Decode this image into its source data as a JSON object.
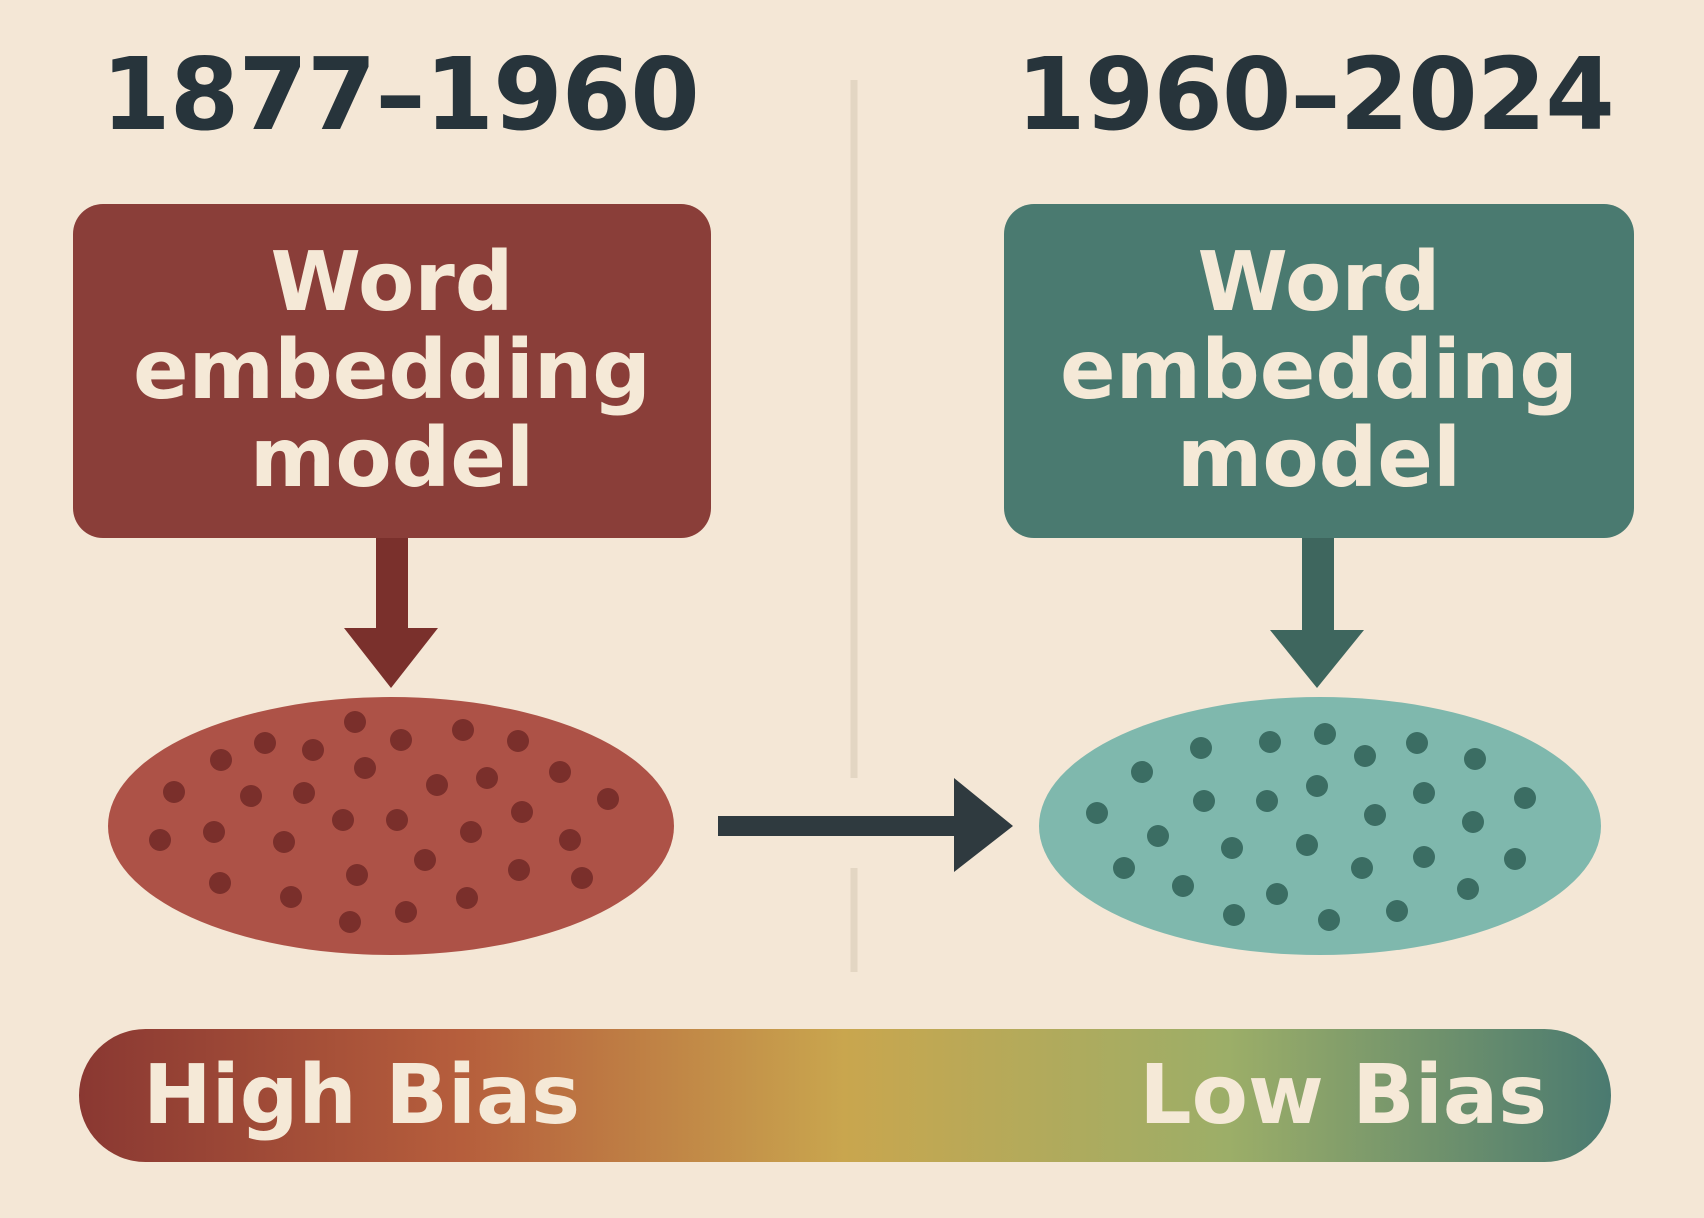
{
  "periods": [
    {
      "title": "1877–1960",
      "model_label": "Word\nembedding\nmodel",
      "color": "#8a3e39",
      "cluster_color": "#ad5247",
      "dot_color": "#7a2f2b"
    },
    {
      "title": "1960–2024",
      "model_label": "Word\nembedding\nmodel",
      "color": "#4a7a70",
      "cluster_color": "#7fb8ad",
      "dot_color": "#3b6d63"
    }
  ],
  "bias_scale": {
    "high_label": "High Bias",
    "low_label": "Low Bias",
    "colors": [
      "#8a3832",
      "#b65e3c",
      "#c9a64e",
      "#9cae68",
      "#4a7a70"
    ]
  },
  "colors": {
    "background": "#f4e7d6",
    "transition_arrow": "#2f3a3f",
    "divider": "#e3d6c3"
  }
}
